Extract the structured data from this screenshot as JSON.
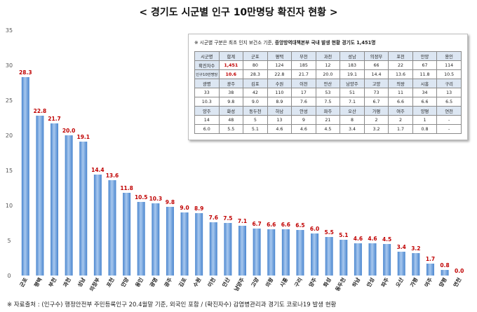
{
  "title": "< 경기도 시군별 인구 10만명당 확진자 현황 >",
  "footnote": "※ 자료출처 : (인구수) 행정안전부 주민등록인구 20.4월말 기준, 외국인 포함 / (확진자수) 감염병관리과 경기도 코로나19 발생 현황",
  "colors": {
    "bar": "#4a86cf",
    "bar_light": "#a8c8ee",
    "value_label": "#c00000",
    "header_fill": "#dce6f2"
  },
  "inset": {
    "note_prefix": "※ 시군별 구분은 최초 인지 보건소 기준,",
    "note_bold": "중앙방역대책본부 국내 발생 현황 경기도 1,451명",
    "rows": [
      {
        "header": true,
        "cells": [
          "시군명",
          "합계",
          "군포",
          "평택",
          "부천",
          "과천",
          "성남",
          "의정부",
          "포천",
          "안양",
          "용인"
        ]
      },
      {
        "header": false,
        "label": true,
        "cells": [
          "확진자수",
          "1,451",
          "80",
          "124",
          "185",
          "12",
          "183",
          "66",
          "22",
          "67",
          "114"
        ]
      },
      {
        "header": false,
        "label": true,
        "cells": [
          "인구10만명당",
          "10.6",
          "28.3",
          "22.8",
          "21.7",
          "20.0",
          "19.1",
          "14.4",
          "13.6",
          "11.8",
          "10.5"
        ]
      },
      {
        "header": true,
        "cells": [
          "광명",
          "광주",
          "김포",
          "수원",
          "이천",
          "안산",
          "남양주",
          "고양",
          "의왕",
          "시흥",
          "구리"
        ]
      },
      {
        "header": false,
        "cells": [
          "33",
          "38",
          "42",
          "110",
          "17",
          "53",
          "51",
          "73",
          "11",
          "34",
          "13"
        ]
      },
      {
        "header": false,
        "cells": [
          "10.3",
          "9.8",
          "9.0",
          "8.9",
          "7.6",
          "7.5",
          "7.1",
          "6.7",
          "6.6",
          "6.6",
          "6.5"
        ]
      },
      {
        "header": true,
        "cells": [
          "양주",
          "화성",
          "동두천",
          "하남",
          "안성",
          "파주",
          "오산",
          "가평",
          "여주",
          "양평",
          "연천"
        ]
      },
      {
        "header": false,
        "cells": [
          "14",
          "48",
          "5",
          "13",
          "9",
          "21",
          "8",
          "2",
          "2",
          "1",
          "-"
        ]
      },
      {
        "header": false,
        "cells": [
          "6.0",
          "5.5",
          "5.1",
          "4.6",
          "4.6",
          "4.5",
          "3.4",
          "3.2",
          "1.7",
          "0.8",
          "-"
        ]
      }
    ]
  },
  "chart_data": {
    "type": "bar",
    "title": "< 경기도 시군별 인구 10만명당 확진자 현황 >",
    "xlabel": "",
    "ylabel": "",
    "ylim": [
      0,
      35
    ],
    "yticks": [
      0,
      5,
      10,
      15,
      20,
      25,
      30,
      35
    ],
    "grid": false,
    "categories": [
      "군포",
      "평택",
      "부천",
      "과천",
      "성남",
      "의정부",
      "포천",
      "안양",
      "용인",
      "광명",
      "광주",
      "김포",
      "수원",
      "이천",
      "안산",
      "남양주",
      "고양",
      "의왕",
      "시흥",
      "구리",
      "양주",
      "화성",
      "동두천",
      "하남",
      "안성",
      "파주",
      "오산",
      "가평",
      "여주",
      "양평",
      "연천"
    ],
    "values": [
      28.3,
      22.8,
      21.7,
      20.0,
      19.1,
      14.4,
      13.6,
      11.8,
      10.5,
      10.3,
      9.8,
      9.0,
      8.9,
      7.6,
      7.5,
      7.1,
      6.7,
      6.6,
      6.6,
      6.5,
      6.0,
      5.5,
      5.1,
      4.6,
      4.6,
      4.5,
      3.4,
      3.2,
      1.7,
      0.8,
      0.0
    ],
    "value_labels": [
      "28.3",
      "22.8",
      "21.7",
      "20.0",
      "19.1",
      "14.4",
      "13.6",
      "11.8",
      "10.5",
      "10.3",
      "9.8",
      "9.0",
      "8.9",
      "7.6",
      "7.5",
      "7.1",
      "6.7",
      "6.6",
      "6.6",
      "6.5",
      "6.0",
      "5.5",
      "5.1",
      "4.6",
      "4.6",
      "4.5",
      "3.4",
      "3.2",
      "1.7",
      "0.8",
      "0.0"
    ]
  }
}
